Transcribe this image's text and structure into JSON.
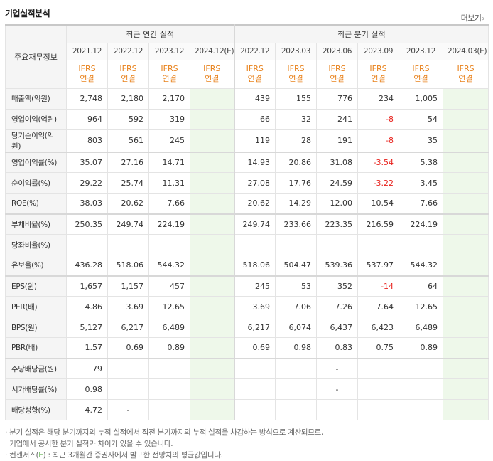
{
  "title": "기업실적분석",
  "more_label": "더보기",
  "table": {
    "row_header": "주요재무정보",
    "annual_group": "최근 연간 실적",
    "quarter_group": "최근 분기 실적",
    "annual_periods": [
      "2021.12",
      "2022.12",
      "2023.12",
      "2024.12(E)"
    ],
    "quarter_periods": [
      "2022.12",
      "2023.03",
      "2023.06",
      "2023.09",
      "2023.12",
      "2024.03(E)"
    ],
    "basis_line1": "IFRS",
    "basis_line2": "연결",
    "rows": [
      {
        "label": "매출액(억원)",
        "annual": [
          "2,748",
          "2,180",
          "2,170",
          ""
        ],
        "quarter": [
          "439",
          "155",
          "776",
          "234",
          "1,005",
          ""
        ]
      },
      {
        "label": "영업이익(억원)",
        "annual": [
          "964",
          "592",
          "319",
          ""
        ],
        "quarter": [
          "66",
          "32",
          "241",
          "-8",
          "54",
          ""
        ]
      },
      {
        "label": "당기순이익(억원)",
        "annual": [
          "803",
          "561",
          "245",
          ""
        ],
        "quarter": [
          "119",
          "28",
          "191",
          "-8",
          "35",
          ""
        ]
      },
      {
        "label": "영업이익률(%)",
        "annual": [
          "35.07",
          "27.16",
          "14.71",
          ""
        ],
        "quarter": [
          "14.93",
          "20.86",
          "31.08",
          "-3.54",
          "5.38",
          ""
        ]
      },
      {
        "label": "순이익률(%)",
        "annual": [
          "29.22",
          "25.74",
          "11.31",
          ""
        ],
        "quarter": [
          "27.08",
          "17.76",
          "24.59",
          "-3.22",
          "3.45",
          ""
        ]
      },
      {
        "label": "ROE(%)",
        "annual": [
          "38.03",
          "20.62",
          "7.66",
          ""
        ],
        "quarter": [
          "20.62",
          "14.29",
          "12.00",
          "10.54",
          "7.66",
          ""
        ]
      },
      {
        "label": "부채비율(%)",
        "annual": [
          "250.35",
          "249.74",
          "224.19",
          ""
        ],
        "quarter": [
          "249.74",
          "233.66",
          "223.35",
          "216.59",
          "224.19",
          ""
        ]
      },
      {
        "label": "당좌비율(%)",
        "annual": [
          "",
          "",
          "",
          ""
        ],
        "quarter": [
          "",
          "",
          "",
          "",
          "",
          ""
        ]
      },
      {
        "label": "유보율(%)",
        "annual": [
          "436.28",
          "518.06",
          "544.32",
          ""
        ],
        "quarter": [
          "518.06",
          "504.47",
          "539.36",
          "537.97",
          "544.32",
          ""
        ]
      },
      {
        "label": "EPS(원)",
        "annual": [
          "1,657",
          "1,157",
          "457",
          ""
        ],
        "quarter": [
          "245",
          "53",
          "352",
          "-14",
          "64",
          ""
        ]
      },
      {
        "label": "PER(배)",
        "annual": [
          "4.86",
          "3.69",
          "12.65",
          ""
        ],
        "quarter": [
          "3.69",
          "7.06",
          "7.26",
          "7.64",
          "12.65",
          ""
        ]
      },
      {
        "label": "BPS(원)",
        "annual": [
          "5,127",
          "6,217",
          "6,489",
          ""
        ],
        "quarter": [
          "6,217",
          "6,074",
          "6,437",
          "6,423",
          "6,489",
          ""
        ]
      },
      {
        "label": "PBR(배)",
        "annual": [
          "1.57",
          "0.69",
          "0.89",
          ""
        ],
        "quarter": [
          "0.69",
          "0.98",
          "0.83",
          "0.75",
          "0.89",
          ""
        ]
      },
      {
        "label": "주당배당금(원)",
        "annual": [
          "79",
          "",
          "",
          ""
        ],
        "quarter": [
          "",
          "",
          "-",
          "",
          "",
          ""
        ]
      },
      {
        "label": "시가배당률(%)",
        "annual": [
          "0.98",
          "",
          "",
          ""
        ],
        "quarter": [
          "",
          "",
          "-",
          "",
          "",
          ""
        ]
      },
      {
        "label": "배당성향(%)",
        "annual": [
          "4.72",
          "-",
          "",
          ""
        ],
        "quarter": [
          "",
          "",
          "",
          "",
          "",
          ""
        ]
      }
    ]
  },
  "notes": {
    "line1": "분기 실적은 해당 분기까지의 누적 실적에서 직전 분기까지의 누적 실적을 차감하는 방식으로 계산되므로,",
    "line2": "기업에서 공시한 분기 실적과 차이가 있을 수 있습니다.",
    "line3_prefix": "컨센서스(",
    "line3_e": "E",
    "line3_suffix": ") : 최근 3개월간 증권사에서 발표한 전망치의 평균값입니다."
  }
}
